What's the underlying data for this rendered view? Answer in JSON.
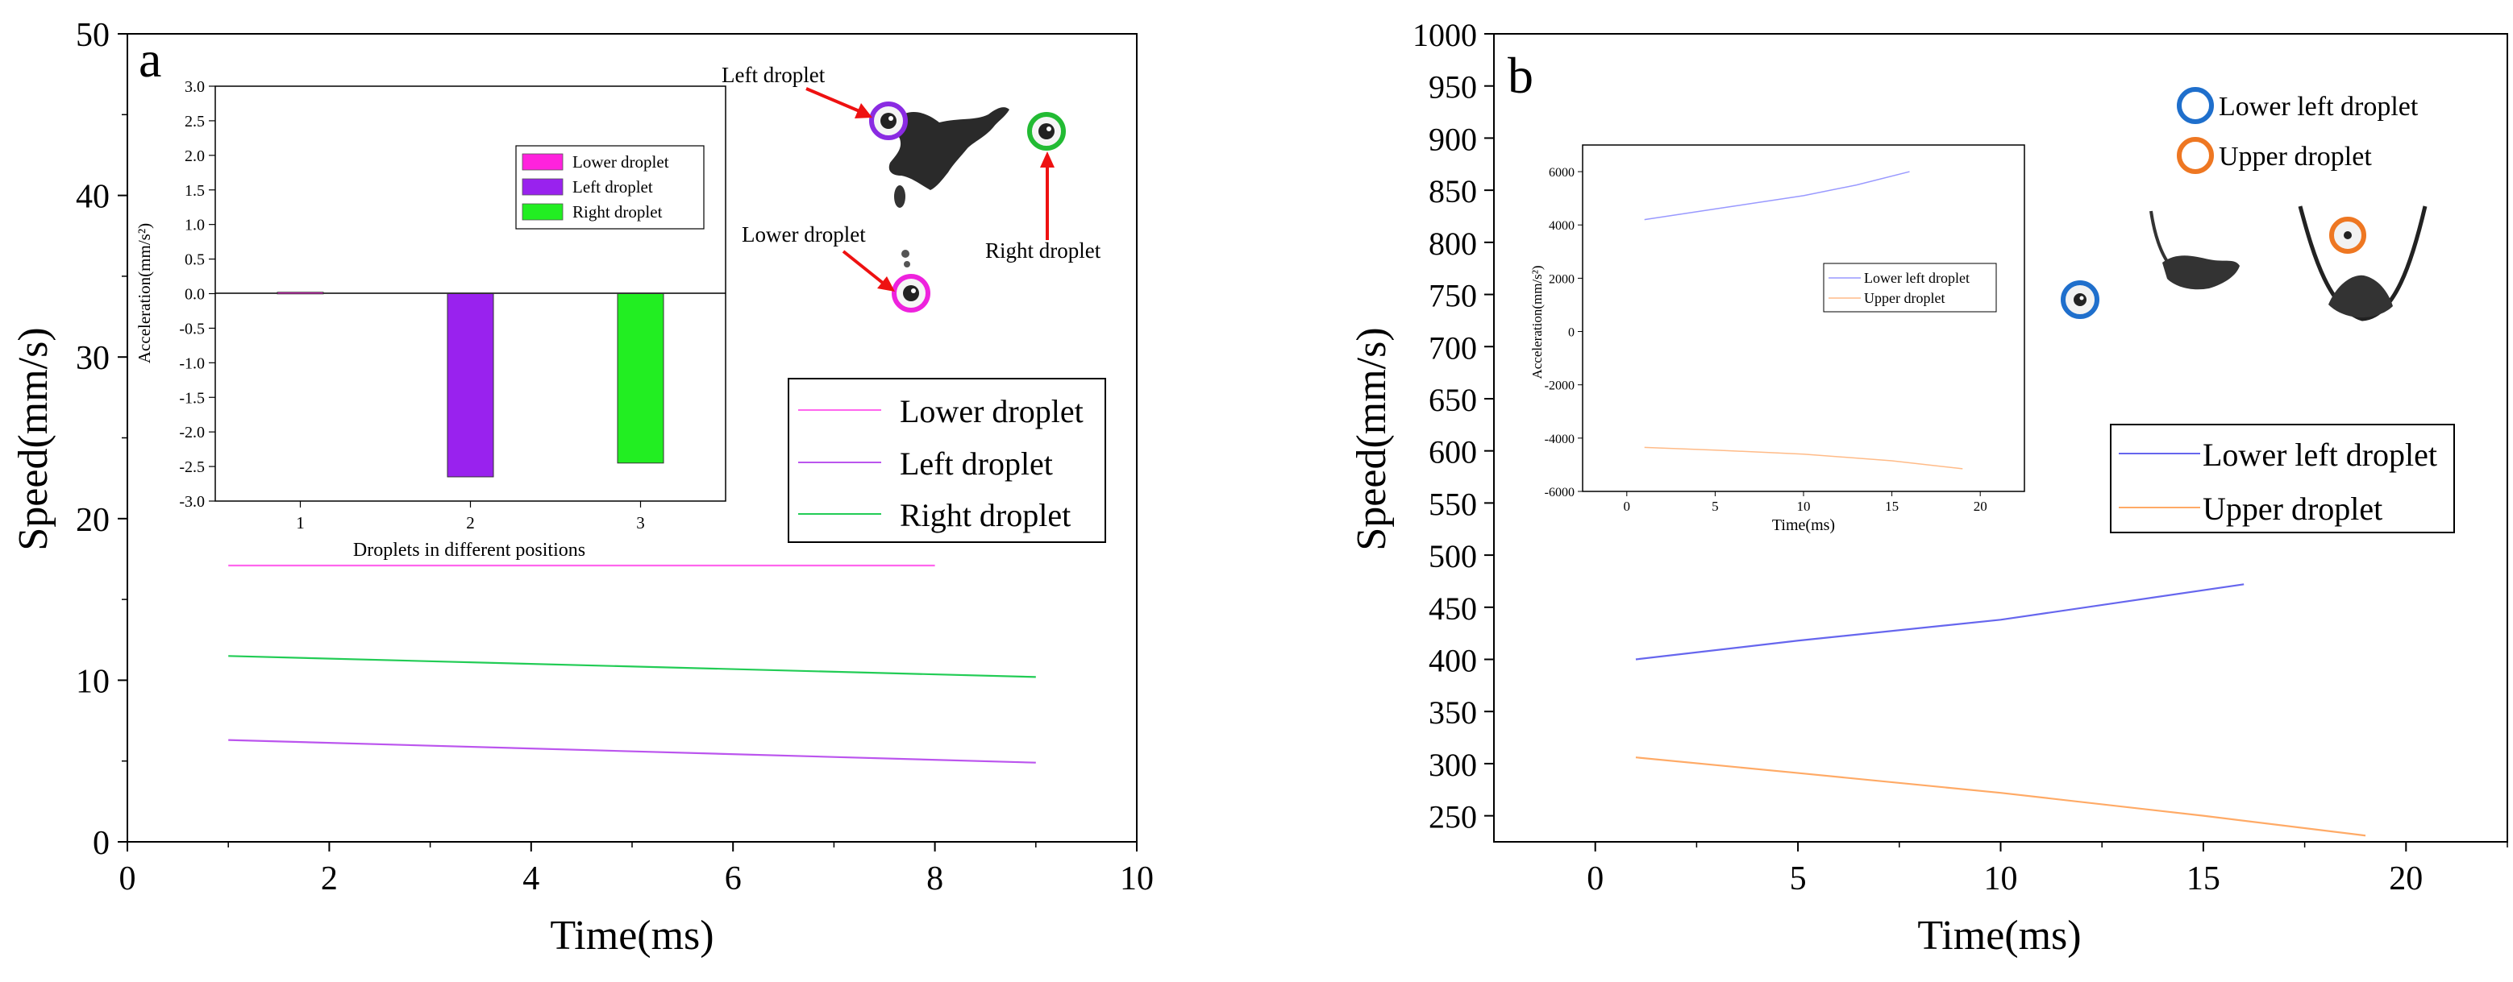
{
  "chart_data": [
    {
      "panel": "a",
      "type": "line",
      "title": "",
      "xlabel": "Time(ms)",
      "ylabel": "Speed(mm/s)",
      "xlim": [
        0,
        10
      ],
      "ylim": [
        0,
        50
      ],
      "xticks": [
        0,
        2,
        4,
        6,
        8,
        10
      ],
      "yticks": [
        0,
        10,
        20,
        30,
        40,
        50
      ],
      "legend_position": "middle-right",
      "series": [
        {
          "name": "Lower droplet",
          "color": "#ff66ee",
          "x": [
            1,
            8
          ],
          "y": [
            17.1,
            17.1
          ]
        },
        {
          "name": "Left droplet",
          "color": "#bb55ee",
          "x": [
            1,
            9
          ],
          "y": [
            6.3,
            4.9
          ]
        },
        {
          "name": "Right droplet",
          "color": "#22cc55",
          "x": [
            1,
            9
          ],
          "y": [
            11.5,
            10.2
          ]
        }
      ],
      "inset": {
        "type": "bar",
        "xlabel": "Droplets in different positions",
        "ylabel": "Acceleration(mm/s²)",
        "ylim": [
          -3.0,
          3.0
        ],
        "yticks": [
          "3.0",
          "2.5",
          "2.0",
          "1.5",
          "1.0",
          "0.5",
          "0.0",
          "-0.5",
          "-1.0",
          "-1.5",
          "-2.0",
          "-2.5",
          "-3.0"
        ],
        "categories": [
          "1",
          "2",
          "3"
        ],
        "legend_position": "top-right",
        "bars": [
          {
            "name": "Lower droplet",
            "color": "#ff22dd",
            "value": 0.02
          },
          {
            "name": "Left droplet",
            "color": "#9922ee",
            "value": -2.65
          },
          {
            "name": "Right droplet",
            "color": "#22ee22",
            "value": -2.45
          }
        ]
      },
      "annotations": {
        "label": "a",
        "left": "Left droplet",
        "lower": "Lower droplet",
        "right": "Right droplet"
      }
    },
    {
      "panel": "b",
      "type": "line",
      "title": "",
      "xlabel": "Time(ms)",
      "ylabel": "Speed(mm/s)",
      "xlim": [
        -2.5,
        22.5
      ],
      "ylim": [
        225,
        1000
      ],
      "xticks": [
        0,
        5,
        10,
        15,
        20
      ],
      "yticks": [
        250,
        300,
        350,
        400,
        450,
        500,
        550,
        600,
        650,
        700,
        750,
        800,
        850,
        900,
        950,
        1000
      ],
      "legend_position": "middle-right",
      "series": [
        {
          "name": "Lower left droplet",
          "color": "#6666ee",
          "x": [
            1,
            5,
            10,
            13,
            16
          ],
          "y": [
            400,
            418,
            438,
            455,
            472
          ]
        },
        {
          "name": "Upper droplet",
          "color": "#ffaa66",
          "x": [
            1,
            5,
            10,
            15,
            19
          ],
          "y": [
            306,
            291,
            272,
            250,
            231
          ]
        }
      ],
      "inset": {
        "type": "line",
        "xlabel": "Time(ms)",
        "ylabel": "Acceleration(mm/s²)",
        "xlim": [
          -2.5,
          22.5
        ],
        "ylim": [
          -6000,
          7000
        ],
        "xticks": [
          0,
          5,
          10,
          15,
          20
        ],
        "yticks": [
          -6000,
          -4000,
          -2000,
          0,
          2000,
          4000,
          6000
        ],
        "legend_position": "middle-right",
        "series": [
          {
            "name": "Lower left droplet",
            "color": "#9999ff",
            "x": [
              1,
              5,
              10,
              13,
              16
            ],
            "y": [
              4200,
              4600,
              5100,
              5500,
              6000
            ]
          },
          {
            "name": "Upper droplet",
            "color": "#ffbb88",
            "x": [
              1,
              5,
              10,
              15,
              19
            ],
            "y": [
              -4350,
              -4450,
              -4600,
              -4850,
              -5150
            ]
          }
        ]
      },
      "annotations": {
        "label": "b",
        "marker_lower_left": "Lower left droplet",
        "marker_upper": "Upper droplet",
        "marker_lower_left_color": "#1f6fcc",
        "marker_upper_color": "#ee7722"
      }
    }
  ]
}
